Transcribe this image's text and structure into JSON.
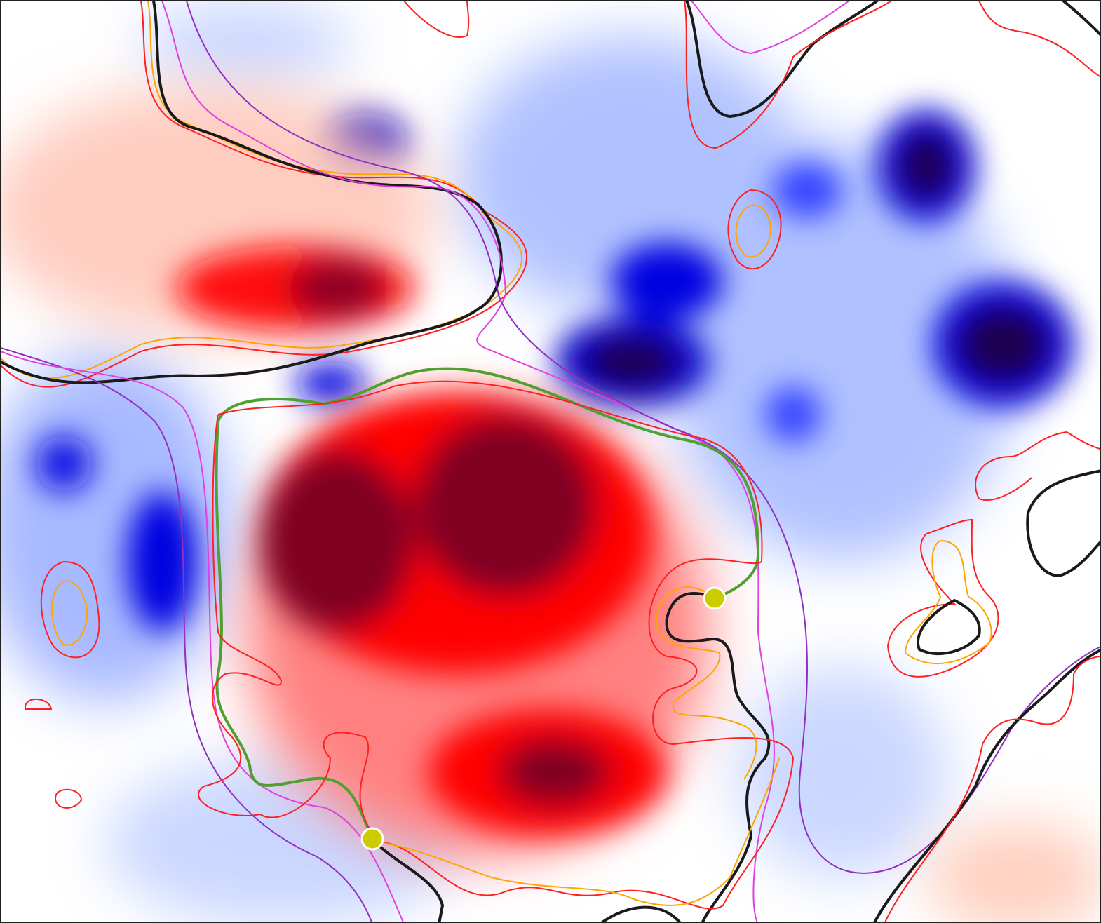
{
  "map": {
    "colormap": {
      "negative": "#0000ff",
      "negative_extreme": "#1a0050",
      "neutral": "#ffffff",
      "positive": "#ff0000",
      "positive_extreme": "#800020"
    },
    "contour_colors": [
      "#ff2020",
      "#ffa500",
      "#111111",
      "#e040e0",
      "#9030c0",
      "#50a030"
    ],
    "markers": [
      {
        "color": "#cccc00"
      },
      {
        "color": "#cccc00"
      }
    ]
  }
}
